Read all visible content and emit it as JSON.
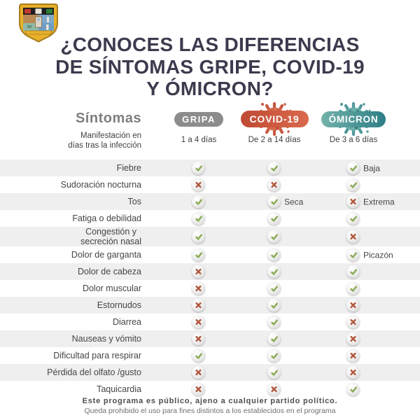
{
  "title": "¿CONOCES LAS DIFERENCIAS\nDE SÍNTOMAS GRIPE, COVID-19\nY ÓMICRON?",
  "table": {
    "symptoms_header": "Síntomas",
    "manifestation_label": "Manifestación en\ndías tras la infección",
    "columns": [
      {
        "id": "gripa",
        "label": "GRIPA",
        "days": "1 a 4 días",
        "color": "#8c8c8c"
      },
      {
        "id": "covid",
        "label": "COVID-19",
        "days": "De 2 a 14 días",
        "color": "#cc5540"
      },
      {
        "id": "omicron",
        "label": "ÓMICRON",
        "days": "De 3 a 6 días",
        "color": "#3f8b8c"
      }
    ],
    "rows": [
      {
        "label": "Fiebre",
        "cells": [
          {
            "mark": "check"
          },
          {
            "mark": "check"
          },
          {
            "mark": "check",
            "note": "Baja"
          }
        ]
      },
      {
        "label": "Sudoración nocturna",
        "cells": [
          {
            "mark": "cross"
          },
          {
            "mark": "cross"
          },
          {
            "mark": "check"
          }
        ]
      },
      {
        "label": "Tos",
        "cells": [
          {
            "mark": "check"
          },
          {
            "mark": "check",
            "note": "Seca"
          },
          {
            "mark": "cross",
            "note": "Extrema"
          }
        ]
      },
      {
        "label": "Fatiga o debilidad",
        "cells": [
          {
            "mark": "check"
          },
          {
            "mark": "check"
          },
          {
            "mark": "check"
          }
        ]
      },
      {
        "label": "Congestión y\nsecreción nasal",
        "cells": [
          {
            "mark": "check"
          },
          {
            "mark": "check"
          },
          {
            "mark": "cross"
          }
        ]
      },
      {
        "label": "Dolor de garganta",
        "cells": [
          {
            "mark": "check"
          },
          {
            "mark": "check"
          },
          {
            "mark": "check",
            "note": "Picazón"
          }
        ]
      },
      {
        "label": "Dolor de cabeza",
        "cells": [
          {
            "mark": "cross"
          },
          {
            "mark": "check"
          },
          {
            "mark": "check"
          }
        ]
      },
      {
        "label": "Dolor muscular",
        "cells": [
          {
            "mark": "cross"
          },
          {
            "mark": "check"
          },
          {
            "mark": "check"
          }
        ]
      },
      {
        "label": "Estornudos",
        "cells": [
          {
            "mark": "cross"
          },
          {
            "mark": "check"
          },
          {
            "mark": "cross"
          }
        ]
      },
      {
        "label": "Diarrea",
        "cells": [
          {
            "mark": "cross"
          },
          {
            "mark": "check"
          },
          {
            "mark": "cross"
          }
        ]
      },
      {
        "label": "Nauseas y vómito",
        "cells": [
          {
            "mark": "cross"
          },
          {
            "mark": "check"
          },
          {
            "mark": "cross"
          }
        ]
      },
      {
        "label": "Dificultad para respirar",
        "cells": [
          {
            "mark": "check"
          },
          {
            "mark": "check"
          },
          {
            "mark": "cross"
          }
        ]
      },
      {
        "label": "Pérdida del olfato /gusto",
        "cells": [
          {
            "mark": "cross"
          },
          {
            "mark": "check"
          },
          {
            "mark": "cross"
          }
        ]
      },
      {
        "label": "Taquicardia",
        "cells": [
          {
            "mark": "cross"
          },
          {
            "mark": "cross"
          },
          {
            "mark": "check"
          }
        ]
      }
    ]
  },
  "footer": {
    "bold_line": "Este programa es público, ajeno a cualquier partido político.",
    "light_line": "Queda prohibido el uso para fines distintos a los establecidos en el programa"
  },
  "colors": {
    "check": "#8cab57",
    "cross": "#b2593f",
    "stripe": "#efeff0",
    "title": "#3c3b4e",
    "gripa_pill": "#8c8c8c",
    "covid_pill_from": "#c04a33",
    "covid_pill_to": "#d96a4e",
    "omicron_pill_from": "#72b2a9",
    "omicron_pill_to": "#2e7e86"
  }
}
